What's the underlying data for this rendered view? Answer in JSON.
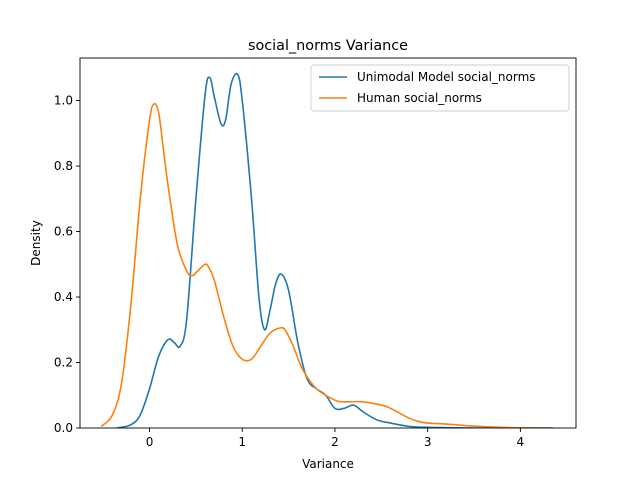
{
  "chart_data": {
    "type": "line",
    "title": "social_norms Variance",
    "xlabel": "Variance",
    "ylabel": "Density",
    "xlim": [
      -0.75,
      4.6
    ],
    "ylim": [
      0,
      1.13
    ],
    "xticks": [
      0,
      1,
      2,
      3,
      4
    ],
    "yticks": [
      0.0,
      0.2,
      0.4,
      0.6,
      0.8,
      1.0
    ],
    "grid": false,
    "legend_position": "top-right",
    "series": [
      {
        "name": "Unimodal Model social_norms",
        "color": "#1f77b4",
        "x": [
          -0.35,
          -0.2,
          -0.1,
          0.0,
          0.1,
          0.2,
          0.27,
          0.33,
          0.4,
          0.5,
          0.6,
          0.65,
          0.7,
          0.77,
          0.82,
          0.88,
          0.95,
          1.0,
          1.1,
          1.18,
          1.24,
          1.3,
          1.36,
          1.42,
          1.5,
          1.6,
          1.7,
          1.8,
          1.9,
          2.0,
          2.1,
          2.2,
          2.3,
          2.45,
          2.6,
          2.8,
          3.0,
          3.2,
          3.5,
          3.8,
          4.1,
          4.35
        ],
        "y": [
          0.0,
          0.01,
          0.04,
          0.12,
          0.22,
          0.27,
          0.26,
          0.25,
          0.33,
          0.7,
          1.02,
          1.07,
          1.01,
          0.93,
          0.94,
          1.05,
          1.08,
          1.0,
          0.7,
          0.4,
          0.3,
          0.36,
          0.44,
          0.47,
          0.42,
          0.26,
          0.15,
          0.12,
          0.1,
          0.06,
          0.06,
          0.07,
          0.05,
          0.025,
          0.015,
          0.005,
          0.002,
          0.001,
          0.0,
          0.0,
          0.0,
          0.0
        ]
      },
      {
        "name": "Human social_norms",
        "color": "#ff7f0e",
        "x": [
          -0.52,
          -0.4,
          -0.3,
          -0.2,
          -0.1,
          0.0,
          0.05,
          0.1,
          0.15,
          0.2,
          0.3,
          0.4,
          0.46,
          0.52,
          0.6,
          0.64,
          0.7,
          0.8,
          0.9,
          1.0,
          1.1,
          1.2,
          1.3,
          1.4,
          1.46,
          1.55,
          1.65,
          1.8,
          2.0,
          2.1,
          2.3,
          2.5,
          2.6,
          2.8,
          2.9,
          3.0,
          3.2,
          3.5,
          3.8,
          4.1,
          4.35
        ],
        "y": [
          0.005,
          0.04,
          0.14,
          0.38,
          0.7,
          0.94,
          0.99,
          0.96,
          0.85,
          0.74,
          0.56,
          0.48,
          0.465,
          0.48,
          0.5,
          0.49,
          0.45,
          0.34,
          0.25,
          0.21,
          0.21,
          0.25,
          0.29,
          0.305,
          0.3,
          0.25,
          0.18,
          0.12,
          0.085,
          0.08,
          0.08,
          0.07,
          0.06,
          0.03,
          0.02,
          0.015,
          0.012,
          0.006,
          0.002,
          0.0,
          0.0
        ]
      }
    ]
  }
}
